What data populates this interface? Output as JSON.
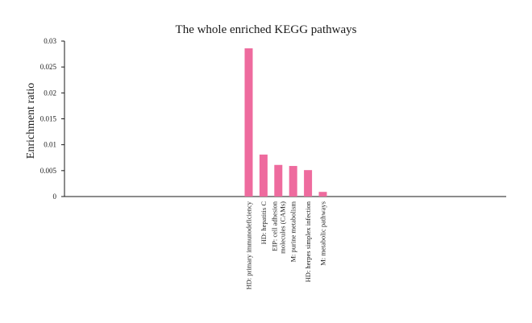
{
  "chart_data": {
    "type": "bar",
    "title": "The whole enriched KEGG pathways",
    "xlabel": "",
    "ylabel": "Enrichment ratio",
    "ylim": [
      0,
      0.03
    ],
    "yticks": [
      "0",
      "0.005",
      "0.01",
      "0.015",
      "0.02",
      "0.025",
      "0.03"
    ],
    "yticks_values": [
      0,
      0.005,
      0.01,
      0.015,
      0.02,
      0.025,
      0.03
    ],
    "categories": [
      [
        "HD: primary immunodeficiency"
      ],
      [
        "HD: hepatitis C"
      ],
      [
        "EIP: cell adhesion",
        "molecules (CAMs)"
      ],
      [
        "M: purine metabolism"
      ],
      [
        "HD: herpes simplex infection"
      ],
      [
        "M: metabolic pathways"
      ]
    ],
    "values": [
      0.0286,
      0.0081,
      0.0061,
      0.0059,
      0.0051,
      0.0009
    ],
    "bar_color": "#ee6b9e",
    "grid": false
  }
}
